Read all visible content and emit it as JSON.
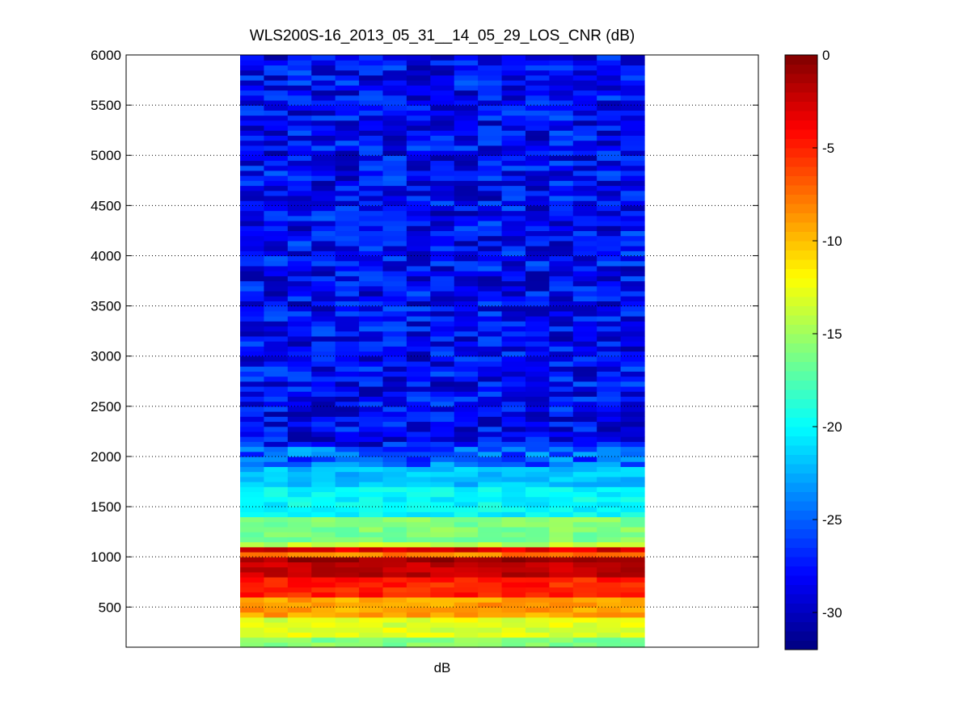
{
  "chart_data": [
    {
      "type": "heatmap",
      "title": "WLS200S-16_2013_05_31__14_05_29_LOS_CNR (dB)",
      "xlabel": "dB",
      "ylabel": "",
      "ylim": [
        100,
        6000
      ],
      "yticks": [
        500,
        1000,
        1500,
        2000,
        2500,
        3000,
        3500,
        4000,
        4500,
        5000,
        5500,
        6000
      ],
      "grid": "y-dotted",
      "n_columns": 17,
      "colormap": "jet",
      "clim": [
        -32,
        0
      ],
      "value_bands": [
        {
          "range_m": [
            100,
            200
          ],
          "cnr_db": -16
        },
        {
          "range_m": [
            200,
            400
          ],
          "cnr_db": -13
        },
        {
          "range_m": [
            400,
            600
          ],
          "cnr_db": -9
        },
        {
          "range_m": [
            600,
            800
          ],
          "cnr_db": -5
        },
        {
          "range_m": [
            800,
            950
          ],
          "cnr_db": -2
        },
        {
          "range_m": [
            950,
            1000
          ],
          "cnr_db": -1
        },
        {
          "range_m": [
            1000,
            1050
          ],
          "cnr_db": -8
        },
        {
          "range_m": [
            1050,
            1100
          ],
          "cnr_db": -3
        },
        {
          "range_m": [
            1100,
            1150
          ],
          "cnr_db": -14
        },
        {
          "range_m": [
            1150,
            1400
          ],
          "cnr_db": -16
        },
        {
          "range_m": [
            1400,
            1700
          ],
          "cnr_db": -20
        },
        {
          "range_m": [
            1700,
            1900
          ],
          "cnr_db": -22
        },
        {
          "range_m": [
            1900,
            2100
          ],
          "cnr_db": -25
        },
        {
          "range_m": [
            2100,
            6000
          ],
          "cnr_db": -28
        }
      ]
    },
    {
      "type": "colorbar",
      "colormap": "jet",
      "range": [
        -32,
        0
      ],
      "ticks": [
        0,
        -5,
        -10,
        -15,
        -20,
        -25,
        -30
      ],
      "tick_labels": [
        "0",
        "-5",
        "-10",
        "-15",
        "-20",
        "-25",
        "-30"
      ]
    }
  ],
  "colors": {
    "background": "#ffffff",
    "axes_border": "#000000"
  }
}
